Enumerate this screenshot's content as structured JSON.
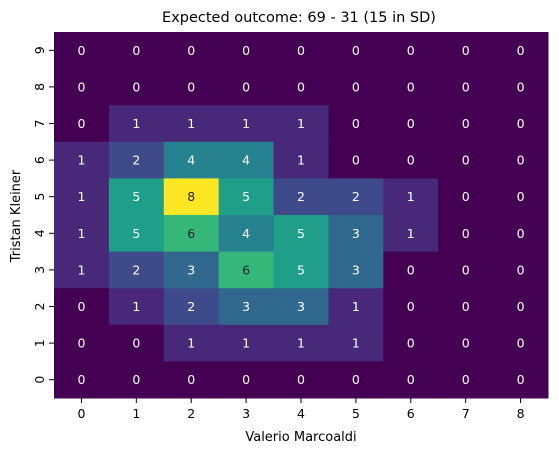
{
  "chart_data": {
    "type": "heatmap",
    "title": "Expected outcome: 69 - 31 (15 in SD)",
    "xlabel": "Valerio Marcoaldi",
    "ylabel": "Tristan Kleiner",
    "x_categories": [
      "0",
      "1",
      "2",
      "3",
      "4",
      "5",
      "6",
      "7",
      "8"
    ],
    "y_categories": [
      "9",
      "8",
      "7",
      "6",
      "5",
      "4",
      "3",
      "2",
      "1",
      "0"
    ],
    "rows": [
      [
        0,
        0,
        0,
        0,
        0,
        0,
        0,
        0,
        0
      ],
      [
        0,
        0,
        0,
        0,
        0,
        0,
        0,
        0,
        0
      ],
      [
        0,
        1,
        1,
        1,
        1,
        0,
        0,
        0,
        0
      ],
      [
        1,
        2,
        4,
        4,
        1,
        0,
        0,
        0,
        0
      ],
      [
        1,
        5,
        8,
        5,
        2,
        2,
        1,
        0,
        0
      ],
      [
        1,
        5,
        6,
        4,
        5,
        3,
        1,
        0,
        0
      ],
      [
        1,
        2,
        3,
        6,
        5,
        3,
        0,
        0,
        0
      ],
      [
        0,
        1,
        2,
        3,
        3,
        1,
        0,
        0,
        0
      ],
      [
        0,
        0,
        1,
        1,
        1,
        1,
        0,
        0,
        0
      ],
      [
        0,
        0,
        0,
        0,
        0,
        0,
        0,
        0,
        0
      ]
    ],
    "colormap": "viridis",
    "vmin": 0,
    "vmax": 8,
    "grid": false,
    "annotations": true
  }
}
